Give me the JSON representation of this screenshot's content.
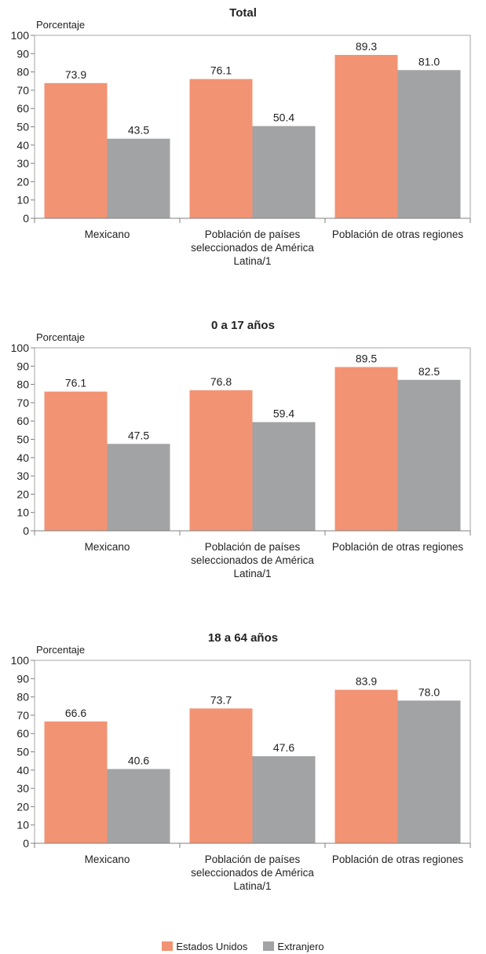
{
  "colors": {
    "us": "#F29373",
    "abroad": "#A2A3A5",
    "axis": "#808080",
    "border": "#A6A6A6"
  },
  "legend": {
    "us_label": "Estados Unidos",
    "abroad_label": "Extranjero"
  },
  "chart_data": [
    {
      "type": "bar",
      "title": "Total",
      "ylabel": "Porcentaje",
      "ylim": [
        0,
        100
      ],
      "yticks": [
        0,
        10,
        20,
        30,
        40,
        50,
        60,
        70,
        80,
        90,
        100
      ],
      "categories": [
        "Mexicano",
        "Población de países seleccionados de América Latina/1",
        "Población de otras regiones"
      ],
      "category_lines": [
        [
          "Mexicano"
        ],
        [
          "Población de países",
          "seleccionados de América",
          "Latina/1"
        ],
        [
          "Población de otras regiones"
        ]
      ],
      "series": [
        {
          "name": "Estados Unidos",
          "values": [
            73.9,
            76.1,
            89.3
          ]
        },
        {
          "name": "Extranjero",
          "values": [
            43.5,
            50.4,
            81.0
          ]
        }
      ]
    },
    {
      "type": "bar",
      "title": "0 a 17 años",
      "ylabel": "Porcentaje",
      "ylim": [
        0,
        100
      ],
      "yticks": [
        0,
        10,
        20,
        30,
        40,
        50,
        60,
        70,
        80,
        90,
        100
      ],
      "categories": [
        "Mexicano",
        "Población de países seleccionados de América Latina/1",
        "Población de otras regiones"
      ],
      "category_lines": [
        [
          "Mexicano"
        ],
        [
          "Población de países",
          "seleccionados de América",
          "Latina/1"
        ],
        [
          "Población de otras regiones"
        ]
      ],
      "series": [
        {
          "name": "Estados Unidos",
          "values": [
            76.1,
            76.8,
            89.5
          ]
        },
        {
          "name": "Extranjero",
          "values": [
            47.5,
            59.4,
            82.5
          ]
        }
      ]
    },
    {
      "type": "bar",
      "title": "18 a 64 años",
      "ylabel": "Porcentaje",
      "ylim": [
        0,
        100
      ],
      "yticks": [
        0,
        10,
        20,
        30,
        40,
        50,
        60,
        70,
        80,
        90,
        100
      ],
      "categories": [
        "Mexicano",
        "Población de países seleccionados de América Latina/1",
        "Población de otras regiones"
      ],
      "category_lines": [
        [
          "Mexicano"
        ],
        [
          "Población de países",
          "seleccionados de América",
          "Latina/1"
        ],
        [
          "Población de otras regiones"
        ]
      ],
      "series": [
        {
          "name": "Estados Unidos",
          "values": [
            66.6,
            73.7,
            83.9
          ]
        },
        {
          "name": "Extranjero",
          "values": [
            40.6,
            47.6,
            78.0
          ]
        }
      ]
    }
  ]
}
